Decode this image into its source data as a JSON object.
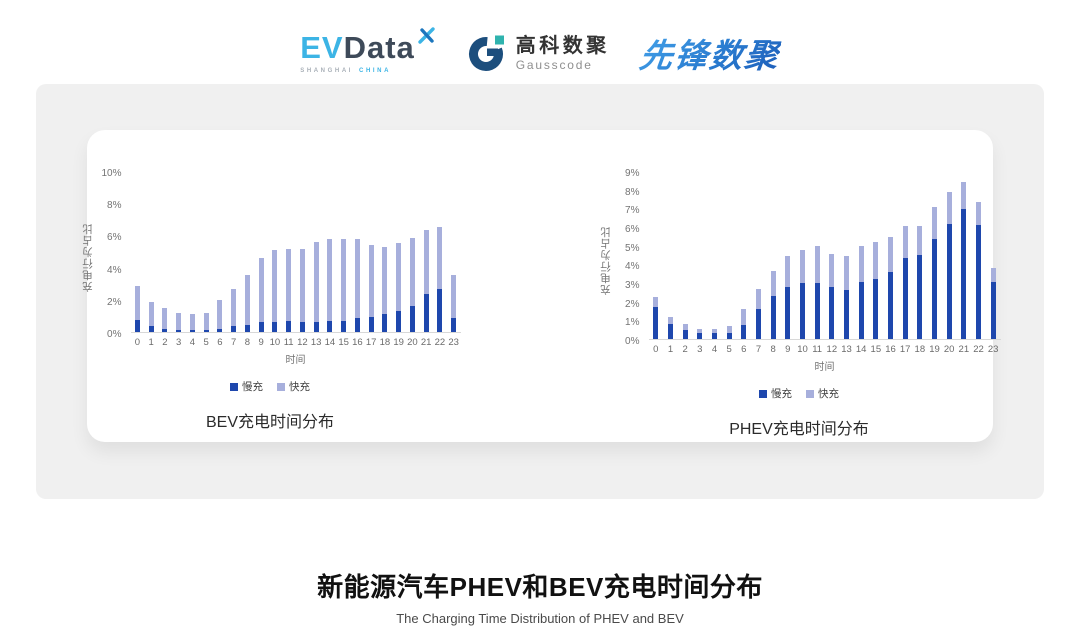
{
  "logos": {
    "evdata": {
      "part1": "EV",
      "part2": "Data",
      "sub1": "SHANGHAI",
      "sub2": "CHINA"
    },
    "gausscode": {
      "cn": "高科数聚",
      "en": "Gausscode"
    },
    "xianfeng": {
      "text": "先锋数聚"
    }
  },
  "colors": {
    "slow_charge": "#1e47ad",
    "fast_charge": "#a7afdc",
    "panel_bg": "#f0f0f0",
    "axis_line": "#d8d8d8"
  },
  "chart_data": [
    {
      "type": "bar",
      "stacked": true,
      "title": "BEV充电时间分布",
      "xlabel": "时间",
      "ylabel": "充电行为占比",
      "categories": [
        "0",
        "1",
        "2",
        "3",
        "4",
        "5",
        "6",
        "7",
        "8",
        "9",
        "10",
        "11",
        "12",
        "13",
        "14",
        "15",
        "16",
        "17",
        "18",
        "19",
        "20",
        "21",
        "22",
        "23"
      ],
      "ylim": [
        0,
        10
      ],
      "ytick_step": 2,
      "ytick_suffix": "%",
      "grid": false,
      "legend_position": "bottom",
      "series": [
        {
          "name": "慢充",
          "color": "#1e47ad",
          "values": [
            0.75,
            0.35,
            0.2,
            0.1,
            0.1,
            0.1,
            0.2,
            0.35,
            0.45,
            0.65,
            0.65,
            0.7,
            0.6,
            0.65,
            0.7,
            0.7,
            0.85,
            0.95,
            1.1,
            1.3,
            1.6,
            2.35,
            2.7,
            0.9
          ]
        },
        {
          "name": "快充",
          "color": "#a7afdc",
          "values": [
            2.1,
            1.55,
            1.3,
            1.1,
            1.0,
            1.1,
            1.8,
            2.35,
            3.1,
            3.95,
            4.5,
            4.5,
            4.6,
            4.95,
            5.1,
            5.1,
            4.95,
            4.5,
            4.2,
            4.25,
            4.3,
            4.0,
            3.85,
            2.65
          ]
        }
      ]
    },
    {
      "type": "bar",
      "stacked": true,
      "title": "PHEV充电时间分布",
      "xlabel": "时间",
      "ylabel": "充电行为占比",
      "categories": [
        "0",
        "1",
        "2",
        "3",
        "4",
        "5",
        "6",
        "7",
        "8",
        "9",
        "10",
        "11",
        "12",
        "13",
        "14",
        "15",
        "16",
        "17",
        "18",
        "19",
        "20",
        "21",
        "22",
        "23"
      ],
      "ylim": [
        0,
        9
      ],
      "ytick_step": 1,
      "ytick_suffix": "%",
      "grid": false,
      "legend_position": "bottom",
      "series": [
        {
          "name": "慢充",
          "color": "#1e47ad",
          "values": [
            1.75,
            0.8,
            0.5,
            0.3,
            0.3,
            0.35,
            0.75,
            1.6,
            2.3,
            2.8,
            3.0,
            3.0,
            2.8,
            2.65,
            3.05,
            3.25,
            3.6,
            4.35,
            4.55,
            5.4,
            6.2,
            7.0,
            6.15,
            3.05
          ]
        },
        {
          "name": "快充",
          "color": "#a7afdc",
          "values": [
            0.5,
            0.4,
            0.3,
            0.25,
            0.25,
            0.35,
            0.85,
            1.1,
            1.35,
            1.7,
            1.8,
            2.0,
            1.8,
            1.85,
            1.95,
            2.0,
            1.9,
            1.75,
            1.55,
            1.7,
            1.75,
            1.45,
            1.25,
            0.8
          ]
        }
      ]
    }
  ],
  "footer": {
    "title": "新能源汽车PHEV和BEV充电时间分布",
    "subtitle": "The Charging Time Distribution of PHEV and BEV"
  }
}
